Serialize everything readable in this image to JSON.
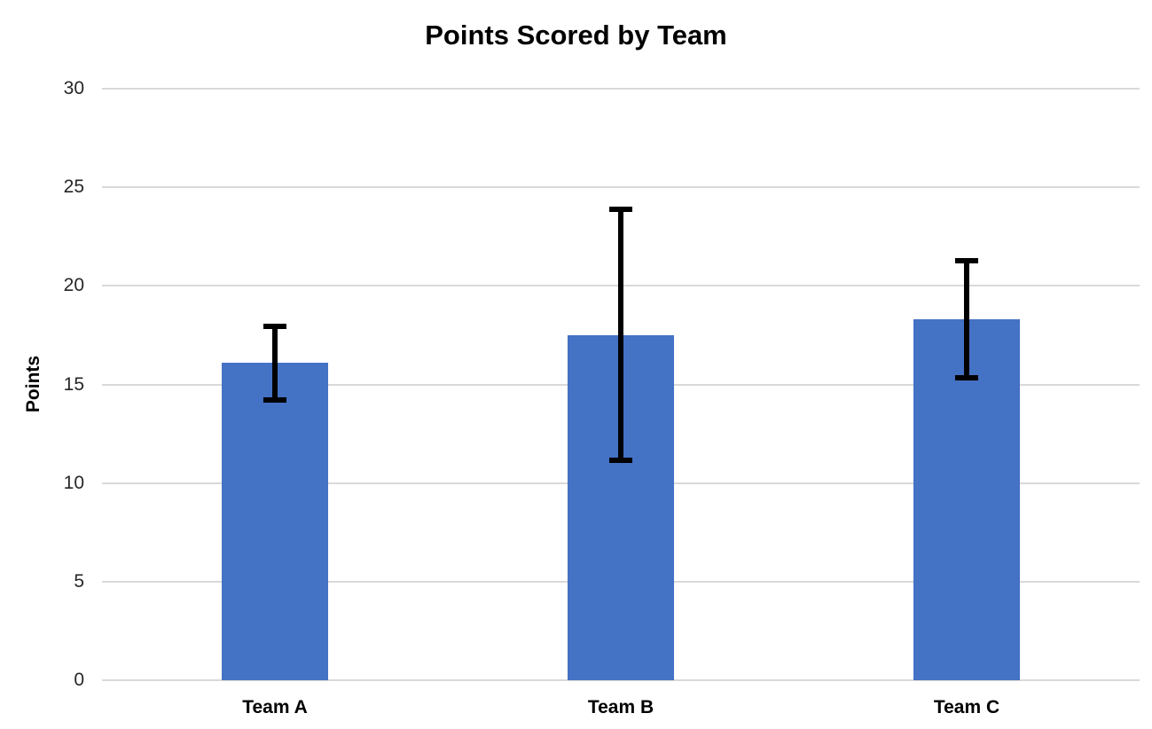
{
  "chart_data": {
    "type": "bar",
    "title": "Points Scored by Team",
    "xlabel": "",
    "ylabel": "Points",
    "categories": [
      "Team A",
      "Team B",
      "Team C"
    ],
    "values": [
      16.1,
      17.5,
      18.3
    ],
    "error_bars": {
      "type": "symmetric",
      "values": [
        2.0,
        6.5,
        3.1
      ],
      "low": [
        14.1,
        11.0,
        15.2
      ],
      "high": [
        18.1,
        24.0,
        21.4
      ]
    },
    "ylim": [
      0,
      30
    ],
    "yticks": [
      0,
      5,
      10,
      15,
      20,
      25,
      30
    ],
    "grid": true,
    "legend": false,
    "legend_position": "none",
    "bar_color": "#4472C4",
    "error_bar_color": "#000000",
    "gridline_color": "#D9D9D9",
    "tick_label_color": "#262626",
    "text_color": "#000000"
  }
}
